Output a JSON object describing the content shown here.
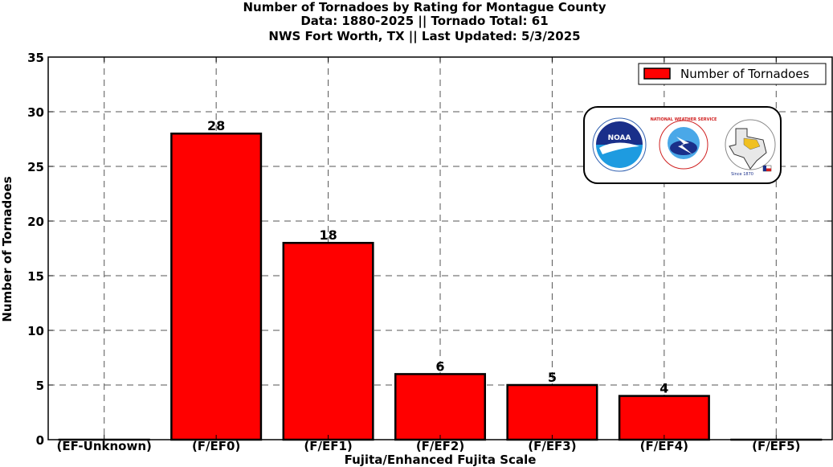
{
  "title_lines": [
    "Number of Tornadoes by Rating for Montague County",
    "Data: 1880-2025 || Tornado Total: 61",
    "NWS Fort Worth, TX || Last Updated: 5/3/2025"
  ],
  "logos": {
    "noaa_text": "NOAA",
    "nws_text": "NATIONAL WEATHER SERVICE",
    "since_text": "Since 1870"
  },
  "colors": {
    "bar": "#ff0000",
    "edge": "#000000",
    "grid": "#555555"
  },
  "chart_data": {
    "type": "bar",
    "categories": [
      "(EF-Unknown)",
      "(F/EF0)",
      "(F/EF1)",
      "(F/EF2)",
      "(F/EF3)",
      "(F/EF4)",
      "(F/EF5)"
    ],
    "series": [
      {
        "name": "Number of Tornadoes",
        "values": [
          0,
          28,
          18,
          6,
          5,
          4,
          0
        ]
      }
    ],
    "data_labels": [
      "",
      "28",
      "18",
      "6",
      "5",
      "4",
      ""
    ],
    "xlabel": "Fujita/Enhanced Fujita Scale",
    "ylabel": "Number of Tornadoes",
    "ylim": [
      0,
      35
    ],
    "yticks": [
      0,
      5,
      10,
      15,
      20,
      25,
      30,
      35
    ],
    "grid": true,
    "legend_position": "top-right"
  }
}
